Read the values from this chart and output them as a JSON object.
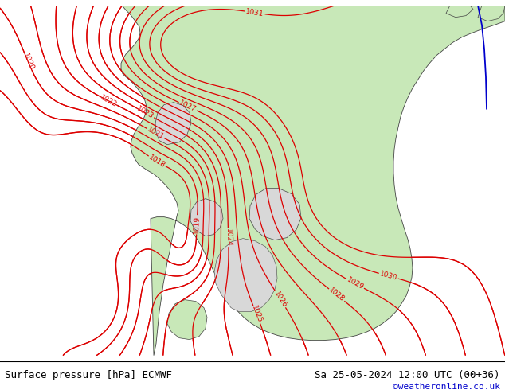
{
  "title_left": "Surface pressure [hPa] ECMWF",
  "title_right": "Sa 25-05-2024 12:00 UTC (00+36)",
  "credit": "©weatheronline.co.uk",
  "bg_color": "#d8d8d8",
  "land_color": "#c8e8b8",
  "isobar_color": "#dd0000",
  "coast_color": "#444444",
  "blue_line_color": "#0000cc",
  "label_fontsize": 6.5,
  "title_fontsize": 9,
  "credit_fontsize": 8,
  "credit_color": "#0000cc",
  "figsize": [
    6.34,
    4.9
  ],
  "dpi": 100
}
